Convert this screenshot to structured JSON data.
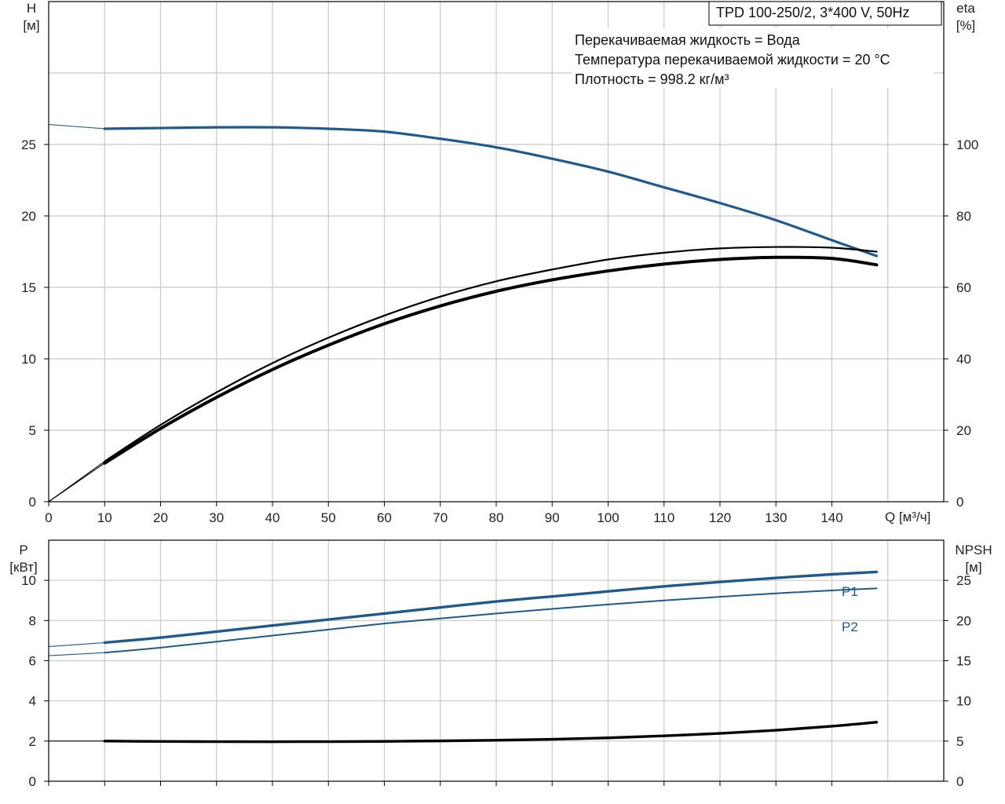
{
  "header": {
    "model": "TPD 100-250/2, 3*400 V, 50Hz"
  },
  "info": {
    "line1": "Перекачиваемая жидкость = Вода",
    "line2": "Температура перекачиваемой жидкости = 20 °C",
    "line3": "Плотность = 998.2 кг/м³"
  },
  "colors": {
    "head": "#1f5a8e",
    "power": "#1f5a8e",
    "efficiency": "#000000",
    "npsh": "#000000",
    "grid": "#c8c8c8",
    "frame": "#000000"
  },
  "chart_data": [
    {
      "type": "line",
      "panel": "top",
      "x_axis": {
        "label": "Q [м³/ч]",
        "ticks": [
          0,
          10,
          20,
          30,
          40,
          50,
          60,
          70,
          80,
          90,
          100,
          110,
          120,
          130,
          140
        ],
        "range": [
          0,
          160
        ]
      },
      "y_left": {
        "label_line1": "H",
        "label_line2": "[м]",
        "ticks": [
          0,
          5,
          10,
          15,
          20,
          25
        ],
        "range": [
          0,
          35
        ]
      },
      "y_right": {
        "label_line1": "eta",
        "label_line2": "[%]",
        "ticks": [
          0,
          20,
          40,
          60,
          80,
          100
        ],
        "range": [
          0,
          140
        ]
      },
      "grid": true,
      "series": [
        {
          "key": "head",
          "axis": "left",
          "x": [
            0,
            10,
            20,
            30,
            40,
            50,
            60,
            70,
            80,
            90,
            100,
            110,
            120,
            130,
            140,
            148
          ],
          "y": [
            26.4,
            26.1,
            26.15,
            26.2,
            26.2,
            26.1,
            25.9,
            25.4,
            24.8,
            24.0,
            23.1,
            22.0,
            20.9,
            19.7,
            18.3,
            17.2
          ]
        },
        {
          "key": "eta",
          "axis": "right",
          "x": [
            0,
            10,
            20,
            30,
            40,
            50,
            60,
            70,
            80,
            90,
            100,
            110,
            120,
            130,
            140,
            148
          ],
          "y": [
            0,
            10.8,
            20.5,
            29.2,
            37.0,
            43.8,
            49.8,
            54.8,
            58.9,
            62.1,
            64.6,
            66.5,
            67.8,
            68.4,
            68.1,
            66.3
          ]
        },
        {
          "key": "eta2",
          "axis": "right",
          "x": [
            0,
            10,
            20,
            30,
            40,
            50,
            60,
            70,
            80,
            90,
            100,
            110,
            120,
            130,
            140,
            148
          ],
          "y": [
            0,
            11.3,
            21.5,
            30.6,
            38.8,
            45.9,
            52.1,
            57.4,
            61.7,
            65.0,
            67.8,
            69.7,
            70.9,
            71.3,
            71.1,
            70.0
          ]
        }
      ]
    },
    {
      "type": "line",
      "panel": "bottom",
      "x_axis": {
        "ticks": [
          0,
          10,
          20,
          30,
          40,
          50,
          60,
          70,
          80,
          90,
          100,
          110,
          120,
          130,
          140
        ],
        "range": [
          0,
          160
        ]
      },
      "y_left": {
        "label_line1": "P",
        "label_line2": "[кВт]",
        "ticks": [
          0,
          2,
          4,
          6,
          8,
          10
        ],
        "range": [
          0,
          12
        ]
      },
      "y_right": {
        "label_line1": "NPSH",
        "label_line2": "[м]",
        "ticks": [
          0,
          5,
          10,
          15,
          20,
          25
        ],
        "range": [
          0,
          30
        ]
      },
      "grid": true,
      "series": [
        {
          "name": "P1",
          "axis": "left",
          "x": [
            0,
            10,
            20,
            30,
            40,
            50,
            60,
            70,
            80,
            90,
            100,
            110,
            120,
            130,
            140,
            148
          ],
          "y": [
            6.7,
            6.9,
            7.15,
            7.45,
            7.75,
            8.05,
            8.35,
            8.65,
            8.95,
            9.2,
            9.45,
            9.7,
            9.92,
            10.12,
            10.3,
            10.42
          ]
        },
        {
          "name": "P2",
          "axis": "left",
          "x": [
            0,
            10,
            20,
            30,
            40,
            50,
            60,
            70,
            80,
            90,
            100,
            110,
            120,
            130,
            140,
            148
          ],
          "y": [
            6.25,
            6.4,
            6.65,
            6.95,
            7.25,
            7.55,
            7.85,
            8.1,
            8.35,
            8.58,
            8.8,
            9.0,
            9.18,
            9.35,
            9.5,
            9.6
          ]
        },
        {
          "key": "npsh",
          "axis": "right",
          "x": [
            0,
            10,
            20,
            30,
            40,
            50,
            60,
            70,
            80,
            90,
            100,
            110,
            120,
            130,
            140,
            148
          ],
          "y": [
            5.0,
            5.0,
            4.95,
            4.93,
            4.92,
            4.93,
            4.96,
            5.02,
            5.1,
            5.22,
            5.4,
            5.65,
            5.95,
            6.35,
            6.85,
            7.35
          ]
        }
      ]
    }
  ]
}
